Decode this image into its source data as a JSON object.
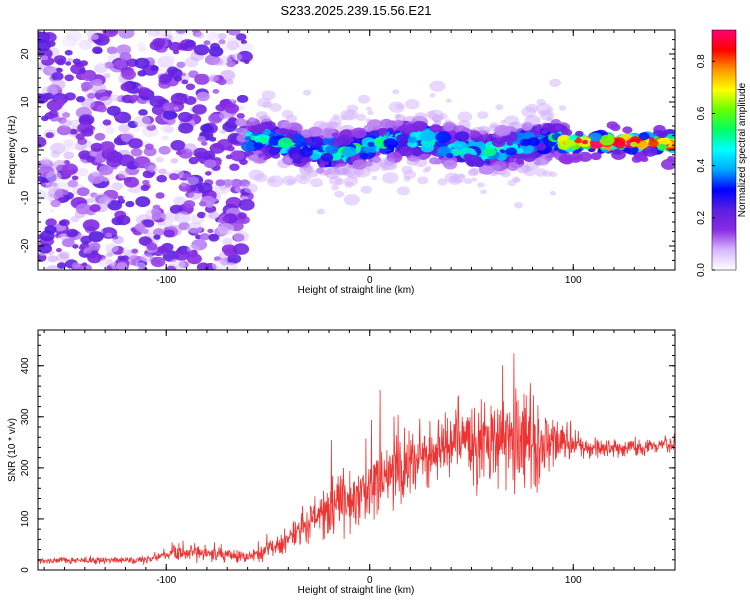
{
  "title": "S233.2025.239.15.56.E21",
  "chart_data": [
    {
      "type": "heatmap",
      "name": "spectrogram",
      "xlabel": "Height of straight line (km)",
      "ylabel": "Frequency (Hz)",
      "xlim": [
        -163,
        150
      ],
      "ylim": [
        -25,
        25
      ],
      "xticks": [
        -100,
        0,
        100
      ],
      "xtick_labels": [
        "-100",
        "0",
        "100"
      ],
      "yticks": [
        -20,
        -10,
        0,
        10,
        20
      ],
      "ytick_labels": [
        "-20",
        "-10",
        "0",
        "10",
        "20"
      ],
      "colorbar": {
        "label": "Normalized spectral amplitude",
        "range": [
          0,
          0.92
        ],
        "ticks": [
          0,
          0.2,
          0.4,
          0.6,
          0.8
        ],
        "tick_labels": [
          "0.0",
          "0.2",
          "0.4",
          "0.6",
          "0.8"
        ],
        "colors": [
          "#ffffff",
          "#d7b8ff",
          "#8a2be2",
          "#5a1fe0",
          "#0000ff",
          "#00a8ff",
          "#00ffff",
          "#00ff66",
          "#66ff00",
          "#ffff00",
          "#ff9900",
          "#ff0000",
          "#ff0077"
        ]
      },
      "zones": [
        {
          "x_range": [
            -163,
            -60
          ],
          "freq_spread": 25,
          "level": 0.15
        },
        {
          "x_range": [
            -60,
            95
          ],
          "freq_center": 1,
          "freq_spread": 4,
          "level": 0.35
        },
        {
          "x_range": [
            95,
            150
          ],
          "freq_center": 1.5,
          "freq_spread": 1.5,
          "level": 0.8
        }
      ]
    },
    {
      "type": "line",
      "name": "snr",
      "xlabel": "Height of straight line (km)",
      "ylabel": "SNR (10 * v/v)",
      "xlim": [
        -163,
        150
      ],
      "ylim": [
        0,
        470
      ],
      "xticks": [
        -100,
        0,
        100
      ],
      "xtick_labels": [
        "-100",
        "0",
        "100"
      ],
      "yticks": [
        0,
        100,
        200,
        300,
        400
      ],
      "ytick_labels": [
        "0",
        "100",
        "200",
        "300",
        "400"
      ],
      "line_color": "#ee3333",
      "envelope": [
        {
          "x": -163,
          "mean": 18,
          "amp": 10
        },
        {
          "x": -110,
          "mean": 20,
          "amp": 12
        },
        {
          "x": -95,
          "mean": 35,
          "amp": 25
        },
        {
          "x": -75,
          "mean": 30,
          "amp": 22
        },
        {
          "x": -60,
          "mean": 25,
          "amp": 18
        },
        {
          "x": -45,
          "mean": 50,
          "amp": 35
        },
        {
          "x": -30,
          "mean": 95,
          "amp": 60
        },
        {
          "x": -15,
          "mean": 130,
          "amp": 80
        },
        {
          "x": 0,
          "mean": 160,
          "amp": 110
        },
        {
          "x": 15,
          "mean": 200,
          "amp": 100
        },
        {
          "x": 30,
          "mean": 230,
          "amp": 90
        },
        {
          "x": 45,
          "mean": 250,
          "amp": 110
        },
        {
          "x": 60,
          "mean": 250,
          "amp": 140
        },
        {
          "x": 75,
          "mean": 250,
          "amp": 170
        },
        {
          "x": 85,
          "mean": 255,
          "amp": 110
        },
        {
          "x": 95,
          "mean": 250,
          "amp": 60
        },
        {
          "x": 110,
          "mean": 238,
          "amp": 30
        },
        {
          "x": 130,
          "mean": 240,
          "amp": 25
        },
        {
          "x": 150,
          "mean": 245,
          "amp": 25
        }
      ]
    }
  ]
}
